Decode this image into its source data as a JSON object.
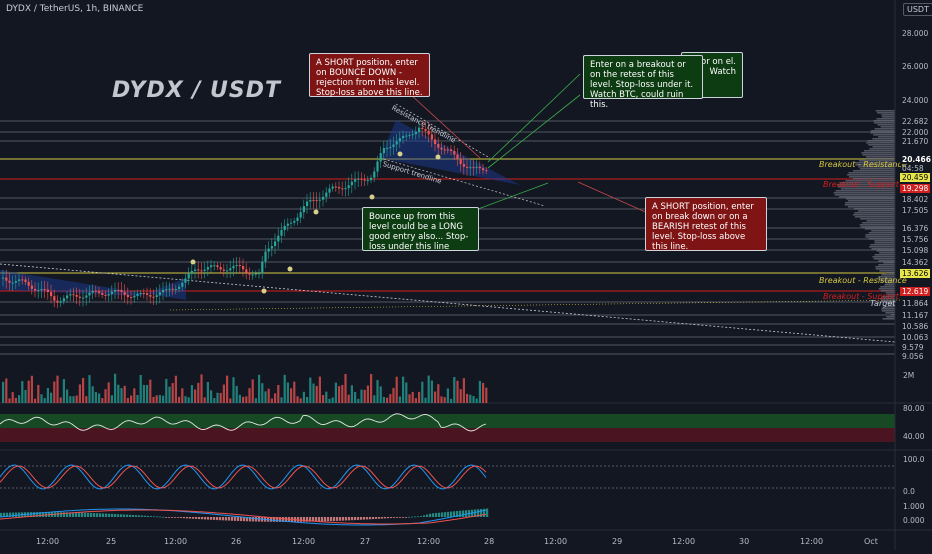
{
  "header": {
    "symbol": "DYDX / TetherUS, 1h, BINANCE",
    "currency": "USDT"
  },
  "chart_title": "DYDX / USDT",
  "price_axis": [
    "28.000",
    "26.000",
    "24.000",
    "22.682",
    "22.000",
    "21.670",
    "20.466",
    "04:58",
    "20.459",
    "19.298",
    "18.402",
    "17.505",
    "16.376",
    "15.756",
    "15.098",
    "14.362",
    "13.626",
    "12.619",
    "11.864",
    "11.167",
    "10.586",
    "10.063",
    "9.579",
    "9.056"
  ],
  "current_price": {
    "value": "20.466",
    "timer": "04:58"
  },
  "levels": {
    "breakout_resistance_1": "Breakout - Resistance",
    "breakout_support_1": "Breakout - Support",
    "breakout_resistance_2": "Breakout - Resistance",
    "breakout_support_2": "Breakout - Support",
    "target": "Target"
  },
  "trendlines": {
    "resistance": "Resistance trendline",
    "support": "Support trendline"
  },
  "notes": {
    "short_bounce": "A SHORT position, enter on BOUNCE DOWN - rejection from this level. Stop-loss above this line.",
    "enter_breakout": "Enter on a breakout or on the retest of this level. Stop-loss under it. Watch BTC, could ruin this.",
    "enter_breakout_shadow": "or on el. Watch",
    "long_bounce": "Bounce up from this level could be a LONG good entry also... Stop-loss under this line",
    "short_breakdown": "A SHORT position, enter on break down or on a BEARISH retest of this level. Stop-loss above this line."
  },
  "indicator_labels": {
    "volume": "2M",
    "rsi_80": "80.00",
    "rsi_40": "40.00",
    "stoch_100": "100.0",
    "stoch_0": "0.0",
    "macd_1": "1.000",
    "macd_0": "0.000"
  },
  "time_axis": [
    "12:00",
    "25",
    "12:00",
    "26",
    "12:00",
    "27",
    "12:00",
    "28",
    "12:00",
    "29",
    "12:00",
    "30",
    "12:00",
    "Oct"
  ],
  "colors": {
    "bg": "#131722",
    "up": "#26a69a",
    "down": "#ef5350",
    "resistance": "#d6c840",
    "support": "#d0201f",
    "note_red": "#7e1414",
    "note_green": "#0d3b12"
  }
}
